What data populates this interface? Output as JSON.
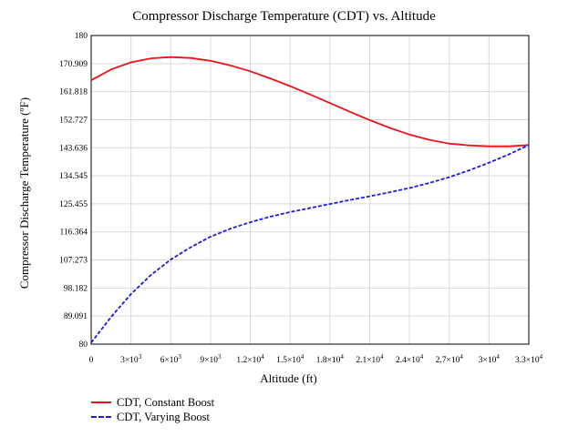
{
  "chart_data": {
    "type": "line",
    "title": "Compressor Discharge Temperature (CDT) vs. Altitude",
    "xlabel": "Altitude (ft)",
    "ylabel": "Compressor Discharge Temperature (ºF)",
    "xlim": [
      0,
      33000
    ],
    "ylim": [
      80,
      180
    ],
    "grid": true,
    "legend_position": "bottom-left",
    "x_ticks": [
      0,
      3000,
      6000,
      9000,
      12000,
      15000,
      18000,
      21000,
      24000,
      27000,
      30000,
      33000
    ],
    "x_tick_labels": [
      {
        "base": "0",
        "exp": ""
      },
      {
        "base": "3×10",
        "exp": "3"
      },
      {
        "base": "6×10",
        "exp": "3"
      },
      {
        "base": "9×10",
        "exp": "3"
      },
      {
        "base": "1.2×10",
        "exp": "4"
      },
      {
        "base": "1.5×10",
        "exp": "4"
      },
      {
        "base": "1.8×10",
        "exp": "4"
      },
      {
        "base": "2.1×10",
        "exp": "4"
      },
      {
        "base": "2.4×10",
        "exp": "4"
      },
      {
        "base": "2.7×10",
        "exp": "4"
      },
      {
        "base": "3×10",
        "exp": "4"
      },
      {
        "base": "3.3×10",
        "exp": "4"
      }
    ],
    "y_ticks": [
      80,
      89.091,
      98.182,
      107.273,
      116.364,
      125.455,
      134.545,
      143.636,
      152.727,
      161.818,
      170.909,
      180
    ],
    "y_tick_labels": [
      "80",
      "89.091",
      "98.182",
      "107.273",
      "116.364",
      "125.455",
      "134.545",
      "143.636",
      "152.727",
      "161.818",
      "170.909",
      "180"
    ],
    "series": [
      {
        "name": "CDT, Constant Boost",
        "color": "#e8141b",
        "style": "solid",
        "x": [
          0,
          1500,
          3000,
          4500,
          6000,
          7500,
          9000,
          10500,
          12000,
          13500,
          15000,
          16500,
          18000,
          19500,
          21000,
          22500,
          24000,
          25500,
          27000,
          28500,
          30000,
          31500,
          33000
        ],
        "y": [
          165.5,
          169.0,
          171.3,
          172.6,
          173.0,
          172.7,
          171.8,
          170.3,
          168.4,
          166.1,
          163.6,
          160.9,
          158.1,
          155.3,
          152.6,
          150.1,
          147.9,
          146.2,
          145.0,
          144.4,
          144.1,
          144.1,
          144.5
        ]
      },
      {
        "name": "CDT, Varying Boost",
        "color": "#1a1ae6",
        "style": "dashed",
        "x": [
          0,
          1500,
          3000,
          4500,
          6000,
          7500,
          9000,
          10500,
          12000,
          13500,
          15000,
          16500,
          18000,
          19500,
          21000,
          22500,
          24000,
          25500,
          27000,
          28500,
          30000,
          31500,
          33000
        ],
        "y": [
          80.5,
          88.8,
          96.2,
          102.4,
          107.4,
          111.4,
          114.8,
          117.4,
          119.5,
          121.3,
          122.8,
          124.1,
          125.4,
          126.7,
          127.9,
          129.2,
          130.6,
          132.2,
          134.1,
          136.3,
          138.8,
          141.5,
          144.5
        ]
      }
    ]
  }
}
